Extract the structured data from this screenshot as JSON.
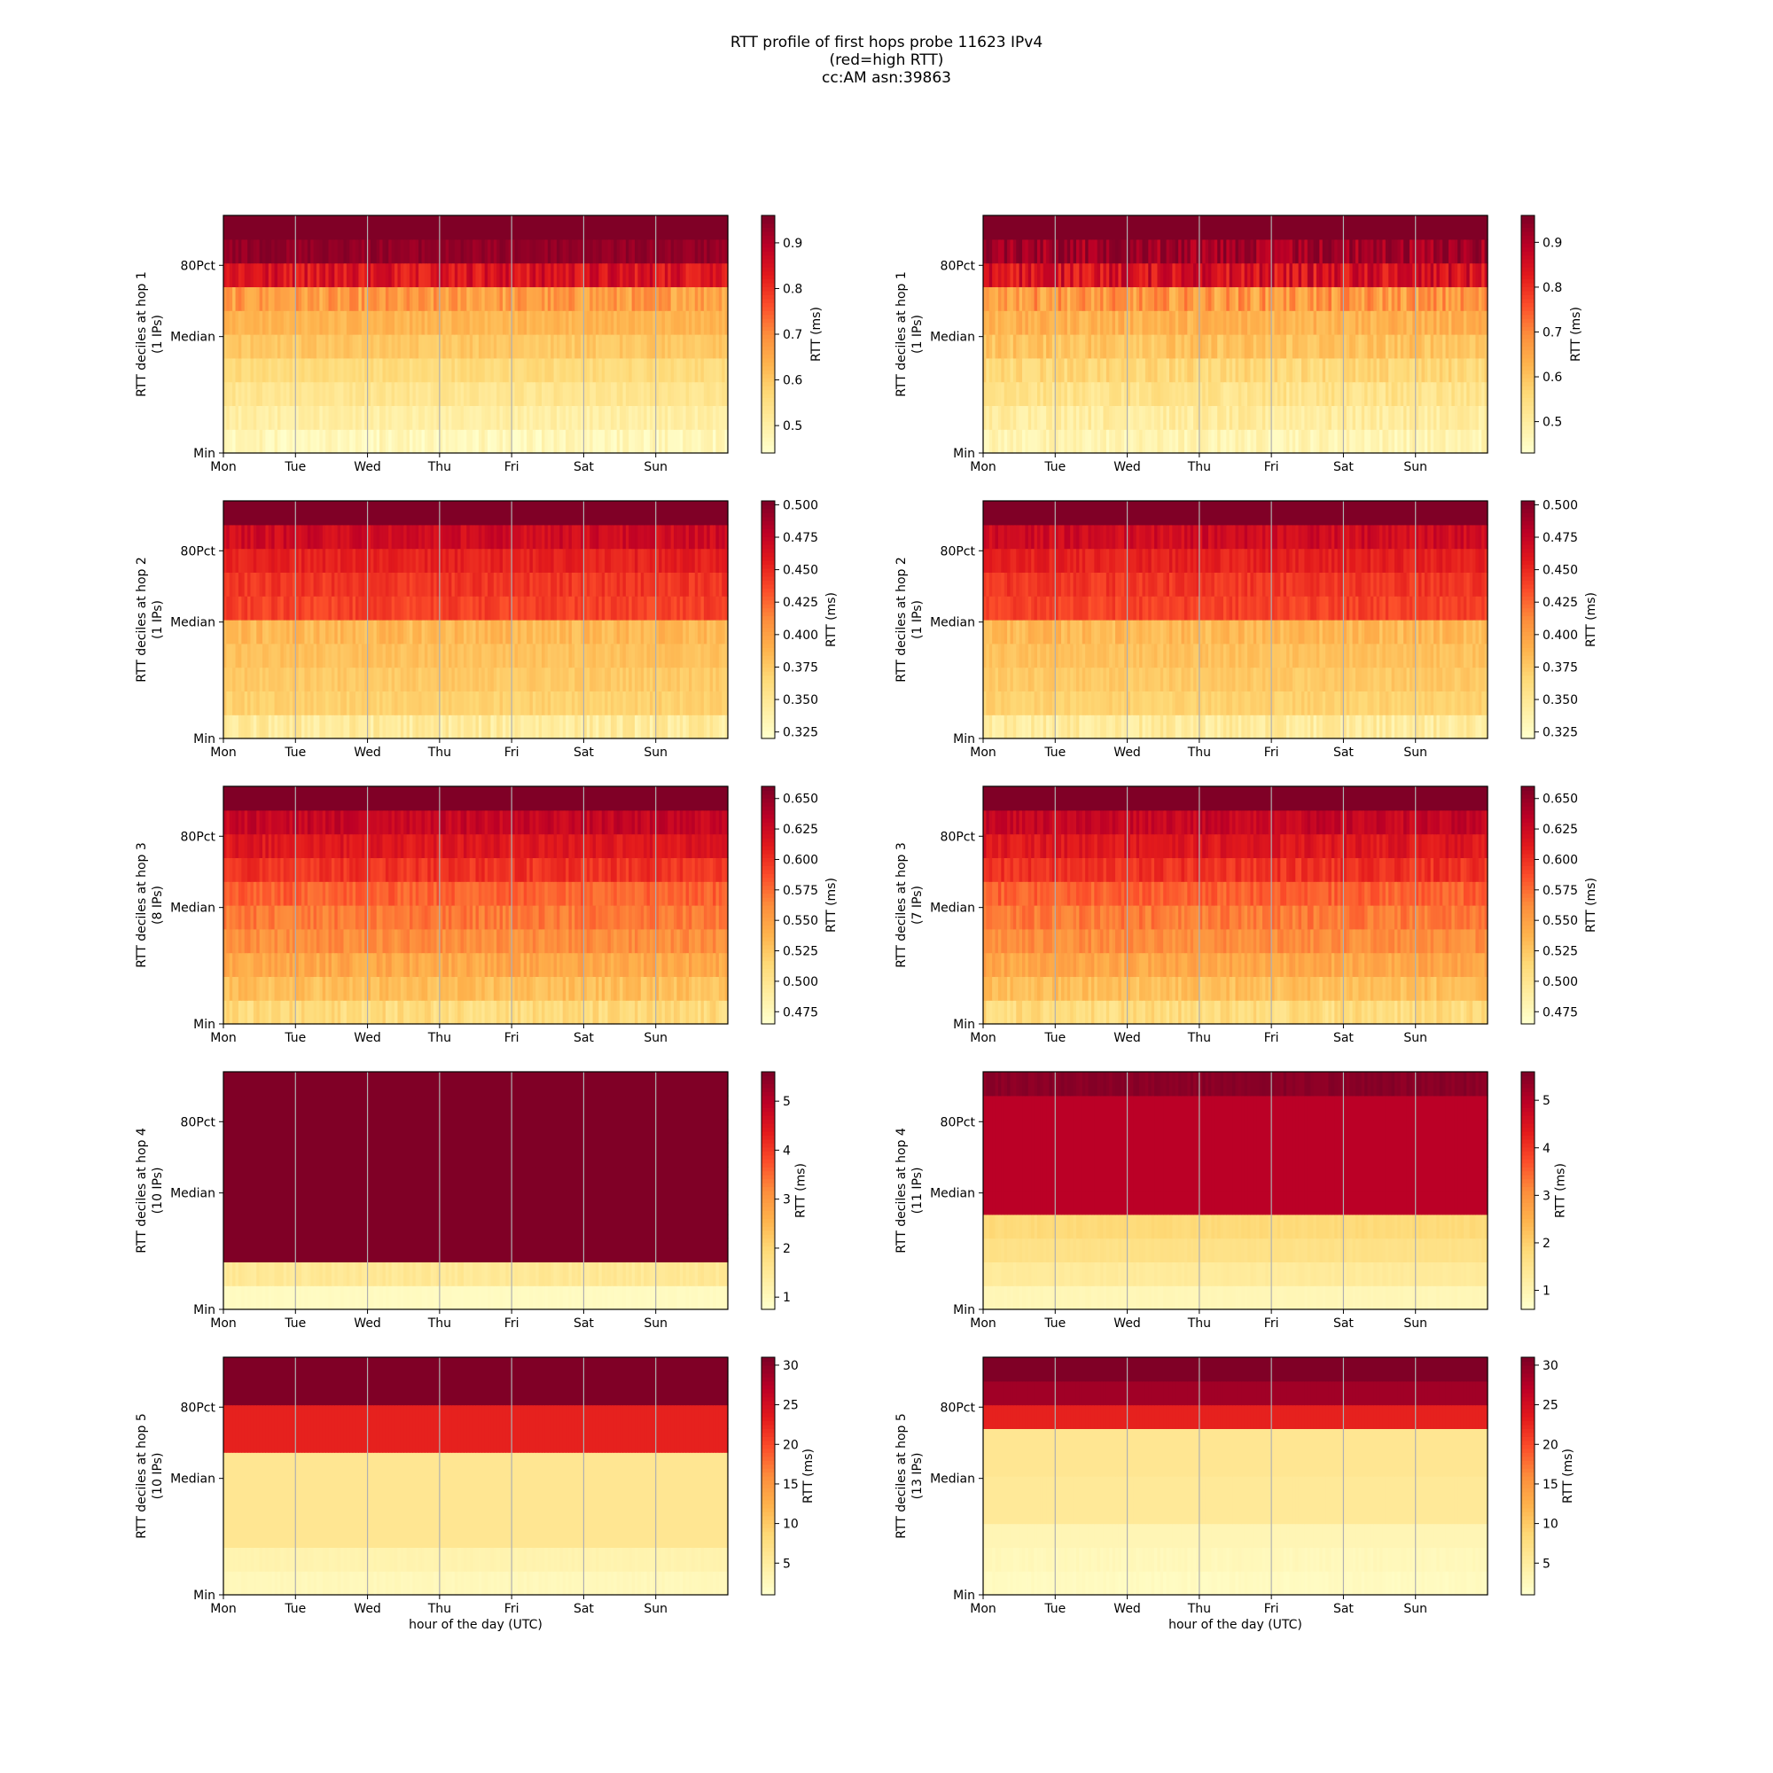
{
  "figure": {
    "title_lines": [
      "RTT profile of first hops probe 11623 IPv4",
      "(red=high RTT)",
      "cc:AM asn:39863"
    ]
  },
  "colors": {
    "cmap": [
      "#ffffcc",
      "#ffeda0",
      "#fed976",
      "#feb24c",
      "#fd8d3c",
      "#fc4e2a",
      "#e31a1c",
      "#bd0026",
      "#800026"
    ],
    "grid": "#b0b0b0"
  },
  "chart_data": [
    {
      "type": "heatmap",
      "hop": 1,
      "column": "left",
      "ylabel": "RTT deciles at hop 1",
      "ips": "(1 IPs)",
      "xlabel": "",
      "x_ticks": [
        "Mon",
        "Tue",
        "Wed",
        "Thu",
        "Fri",
        "Sat",
        "Sun"
      ],
      "y_ticks": [
        "Min",
        "Median",
        "80Pct"
      ],
      "colorbar_label": "RTT (ms)",
      "vmin": 0.44,
      "vmax": 0.96,
      "colorbar_ticks": [
        0.5,
        0.6,
        0.7,
        0.8,
        0.9
      ],
      "colorbar_ticklabels": [
        "0.5",
        "0.6",
        "0.7",
        "0.8",
        "0.9"
      ],
      "deciles_ms": [
        0.47,
        0.5,
        0.53,
        0.56,
        0.6,
        0.63,
        0.67,
        0.85,
        0.94,
        0.96
      ],
      "noise_rows": [
        0.03,
        0.02,
        0.02,
        0.02,
        0.02,
        0.02,
        0.05,
        0.05,
        0.02,
        0.0
      ]
    },
    {
      "type": "heatmap",
      "hop": 1,
      "column": "right",
      "ylabel": "RTT deciles at hop 1",
      "ips": "(1 IPs)",
      "xlabel": "",
      "x_ticks": [
        "Mon",
        "Tue",
        "Wed",
        "Thu",
        "Fri",
        "Sat",
        "Sun"
      ],
      "y_ticks": [
        "Min",
        "Median",
        "80Pct"
      ],
      "colorbar_label": "RTT (ms)",
      "vmin": 0.43,
      "vmax": 0.96,
      "colorbar_ticks": [
        0.5,
        0.6,
        0.7,
        0.8,
        0.9
      ],
      "colorbar_ticklabels": [
        "0.5",
        "0.6",
        "0.7",
        "0.8",
        "0.9"
      ],
      "deciles_ms": [
        0.47,
        0.5,
        0.53,
        0.56,
        0.6,
        0.63,
        0.67,
        0.85,
        0.92,
        0.96
      ],
      "noise_rows": [
        0.03,
        0.03,
        0.03,
        0.03,
        0.03,
        0.03,
        0.06,
        0.06,
        0.05,
        0.0
      ]
    },
    {
      "type": "heatmap",
      "hop": 2,
      "column": "left",
      "ylabel": "RTT deciles at hop 2",
      "ips": "(1 IPs)",
      "xlabel": "",
      "x_ticks": [
        "Mon",
        "Tue",
        "Wed",
        "Thu",
        "Fri",
        "Sat",
        "Sun"
      ],
      "y_ticks": [
        "Min",
        "Median",
        "80Pct"
      ],
      "colorbar_label": "RTT (ms)",
      "vmin": 0.32,
      "vmax": 0.503,
      "colorbar_ticks": [
        0.325,
        0.35,
        0.375,
        0.4,
        0.425,
        0.45,
        0.475,
        0.5
      ],
      "colorbar_ticklabels": [
        "0.325",
        "0.350",
        "0.375",
        "0.400",
        "0.425",
        "0.450",
        "0.475",
        "0.500"
      ],
      "deciles_ms": [
        0.345,
        0.37,
        0.375,
        0.38,
        0.385,
        0.44,
        0.445,
        0.455,
        0.47,
        0.503
      ],
      "noise_rows": [
        0.012,
        0.006,
        0.006,
        0.006,
        0.01,
        0.008,
        0.008,
        0.008,
        0.01,
        0.0
      ]
    },
    {
      "type": "heatmap",
      "hop": 2,
      "column": "right",
      "ylabel": "RTT deciles at hop 2",
      "ips": "(1 IPs)",
      "xlabel": "",
      "x_ticks": [
        "Mon",
        "Tue",
        "Wed",
        "Thu",
        "Fri",
        "Sat",
        "Sun"
      ],
      "y_ticks": [
        "Min",
        "Median",
        "80Pct"
      ],
      "colorbar_label": "RTT (ms)",
      "vmin": 0.32,
      "vmax": 0.503,
      "colorbar_ticks": [
        0.325,
        0.35,
        0.375,
        0.4,
        0.425,
        0.45,
        0.475,
        0.5
      ],
      "colorbar_ticklabels": [
        "0.325",
        "0.350",
        "0.375",
        "0.400",
        "0.425",
        "0.450",
        "0.475",
        "0.500"
      ],
      "deciles_ms": [
        0.345,
        0.37,
        0.375,
        0.38,
        0.385,
        0.44,
        0.445,
        0.455,
        0.47,
        0.503
      ],
      "noise_rows": [
        0.012,
        0.006,
        0.006,
        0.006,
        0.01,
        0.008,
        0.008,
        0.008,
        0.01,
        0.0
      ]
    },
    {
      "type": "heatmap",
      "hop": 3,
      "column": "left",
      "ylabel": "RTT deciles at hop 3",
      "ips": "(8 IPs)",
      "xlabel": "",
      "x_ticks": [
        "Mon",
        "Tue",
        "Wed",
        "Thu",
        "Fri",
        "Sat",
        "Sun"
      ],
      "y_ticks": [
        "Min",
        "Median",
        "80Pct"
      ],
      "colorbar_label": "RTT (ms)",
      "vmin": 0.465,
      "vmax": 0.66,
      "colorbar_ticks": [
        0.475,
        0.5,
        0.525,
        0.55,
        0.575,
        0.6,
        0.625,
        0.65
      ],
      "colorbar_ticklabels": [
        "0.475",
        "0.500",
        "0.525",
        "0.550",
        "0.575",
        "0.600",
        "0.625",
        "0.650"
      ],
      "deciles_ms": [
        0.51,
        0.53,
        0.545,
        0.56,
        0.57,
        0.58,
        0.6,
        0.615,
        0.63,
        0.66
      ],
      "noise_rows": [
        0.012,
        0.01,
        0.01,
        0.01,
        0.01,
        0.01,
        0.01,
        0.01,
        0.01,
        0.0
      ]
    },
    {
      "type": "heatmap",
      "hop": 3,
      "column": "right",
      "ylabel": "RTT deciles at hop 3",
      "ips": "(7 IPs)",
      "xlabel": "",
      "x_ticks": [
        "Mon",
        "Tue",
        "Wed",
        "Thu",
        "Fri",
        "Sat",
        "Sun"
      ],
      "y_ticks": [
        "Min",
        "Median",
        "80Pct"
      ],
      "colorbar_label": "RTT (ms)",
      "vmin": 0.465,
      "vmax": 0.66,
      "colorbar_ticks": [
        0.475,
        0.5,
        0.525,
        0.55,
        0.575,
        0.6,
        0.625,
        0.65
      ],
      "colorbar_ticklabels": [
        "0.475",
        "0.500",
        "0.525",
        "0.550",
        "0.575",
        "0.600",
        "0.625",
        "0.650"
      ],
      "deciles_ms": [
        0.51,
        0.53,
        0.545,
        0.56,
        0.57,
        0.58,
        0.6,
        0.615,
        0.63,
        0.66
      ],
      "noise_rows": [
        0.012,
        0.01,
        0.01,
        0.01,
        0.01,
        0.01,
        0.01,
        0.01,
        0.01,
        0.0
      ]
    },
    {
      "type": "heatmap",
      "hop": 4,
      "column": "left",
      "ylabel": "RTT deciles at hop 4",
      "ips": "(10 IPs)",
      "xlabel": "",
      "x_ticks": [
        "Mon",
        "Tue",
        "Wed",
        "Thu",
        "Fri",
        "Sat",
        "Sun"
      ],
      "y_ticks": [
        "Min",
        "Median",
        "80Pct"
      ],
      "colorbar_label": "RTT (ms)",
      "vmin": 0.75,
      "vmax": 5.6,
      "colorbar_ticks": [
        1,
        2,
        3,
        4,
        5
      ],
      "colorbar_ticklabels": [
        "1",
        "2",
        "3",
        "4",
        "5"
      ],
      "deciles_ms": [
        0.9,
        1.5,
        5.6,
        5.6,
        5.6,
        5.6,
        5.6,
        5.6,
        5.6,
        5.6
      ],
      "noise_rows": [
        0.03,
        0.12,
        0,
        0,
        0,
        0,
        0,
        0,
        0,
        0
      ]
    },
    {
      "type": "heatmap",
      "hop": 4,
      "column": "right",
      "ylabel": "RTT deciles at hop 4",
      "ips": "(11 IPs)",
      "xlabel": "",
      "x_ticks": [
        "Mon",
        "Tue",
        "Wed",
        "Thu",
        "Fri",
        "Sat",
        "Sun"
      ],
      "y_ticks": [
        "Min",
        "Median",
        "80Pct"
      ],
      "colorbar_label": "RTT (ms)",
      "vmin": 0.6,
      "vmax": 5.6,
      "colorbar_ticks": [
        1,
        2,
        3,
        4,
        5
      ],
      "colorbar_ticklabels": [
        "1",
        "2",
        "3",
        "4",
        "5"
      ],
      "deciles_ms": [
        0.9,
        1.3,
        1.6,
        1.8,
        5.0,
        5.0,
        5.0,
        5.0,
        5.0,
        5.5
      ],
      "noise_rows": [
        0.03,
        0.05,
        0.05,
        0.08,
        0,
        0,
        0,
        0,
        0,
        0.1
      ]
    },
    {
      "type": "heatmap",
      "hop": 5,
      "column": "left",
      "ylabel": "RTT deciles at hop 5",
      "ips": "(10 IPs)",
      "xlabel": "hour of the day (UTC)",
      "x_ticks": [
        "Mon",
        "Tue",
        "Wed",
        "Thu",
        "Fri",
        "Sat",
        "Sun"
      ],
      "y_ticks": [
        "Min",
        "Median",
        "80Pct"
      ],
      "colorbar_label": "RTT (ms)",
      "vmin": 1,
      "vmax": 31,
      "colorbar_ticks": [
        5,
        10,
        15,
        20,
        25,
        30
      ],
      "colorbar_ticklabels": [
        "5",
        "10",
        "15",
        "20",
        "25",
        "30"
      ],
      "deciles_ms": [
        2.5,
        3.5,
        6,
        6,
        6,
        6,
        23,
        23,
        31,
        31
      ],
      "noise_rows": [
        0.3,
        0.2,
        0,
        0,
        0,
        0,
        0,
        0,
        0,
        0
      ]
    },
    {
      "type": "heatmap",
      "hop": 5,
      "column": "right",
      "ylabel": "RTT deciles at hop 5",
      "ips": "(13 IPs)",
      "xlabel": "hour of the day (UTC)",
      "x_ticks": [
        "Mon",
        "Tue",
        "Wed",
        "Thu",
        "Fri",
        "Sat",
        "Sun"
      ],
      "y_ticks": [
        "Min",
        "Median",
        "80Pct"
      ],
      "colorbar_label": "RTT (ms)",
      "vmin": 1,
      "vmax": 31,
      "colorbar_ticks": [
        5,
        10,
        15,
        20,
        25,
        30
      ],
      "colorbar_ticklabels": [
        "5",
        "10",
        "15",
        "20",
        "25",
        "30"
      ],
      "deciles_ms": [
        2,
        2.5,
        3,
        5.5,
        5.5,
        6,
        6,
        23,
        29,
        31
      ],
      "noise_rows": [
        0.3,
        0.3,
        0,
        0,
        0,
        0,
        0,
        0,
        0,
        0
      ]
    }
  ]
}
